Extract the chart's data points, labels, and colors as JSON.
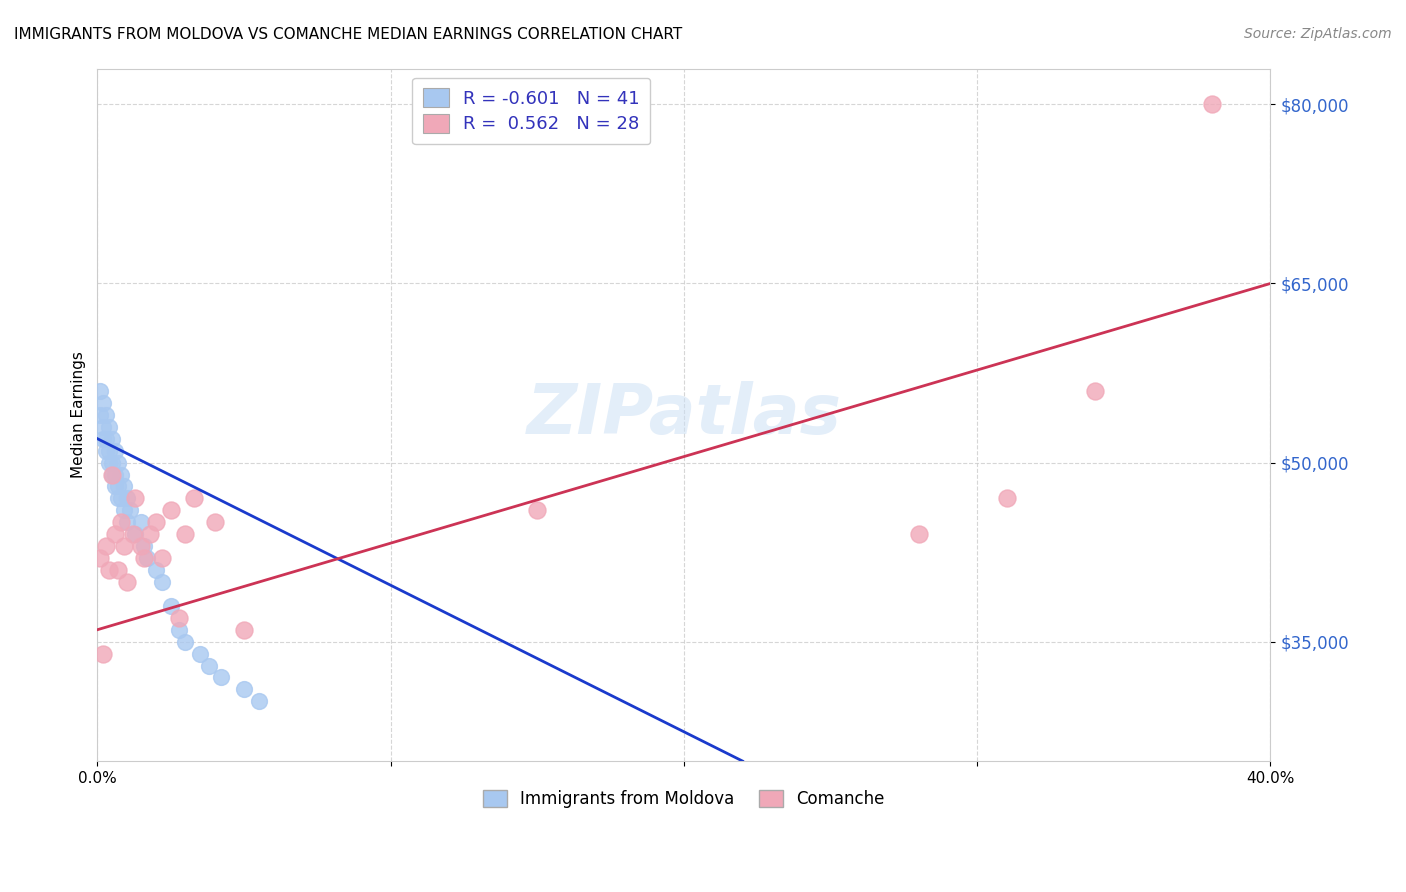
{
  "title": "IMMIGRANTS FROM MOLDOVA VS COMANCHE MEDIAN EARNINGS CORRELATION CHART",
  "source": "Source: ZipAtlas.com",
  "ylabel": "Median Earnings",
  "xlim": [
    0.0,
    0.4
  ],
  "ylim": [
    25000,
    83000
  ],
  "yticks": [
    35000,
    50000,
    65000,
    80000
  ],
  "ytick_labels": [
    "$35,000",
    "$50,000",
    "$65,000",
    "$80,000"
  ],
  "xticks": [
    0.0,
    0.1,
    0.2,
    0.3,
    0.4
  ],
  "xtick_labels": [
    "0.0%",
    "",
    "",
    "",
    "40.0%"
  ],
  "legend_labels": [
    "Immigrants from Moldova",
    "Comanche"
  ],
  "r_moldova": "-0.601",
  "n_moldova": "41",
  "r_comanche": "0.562",
  "n_comanche": "28",
  "blue_color": "#a8c8f0",
  "pink_color": "#f0a8b8",
  "blue_line_color": "#1a3acc",
  "pink_line_color": "#cc3355",
  "watermark": "ZIPatlas",
  "moldova_x": [
    0.001,
    0.001,
    0.002,
    0.002,
    0.002,
    0.003,
    0.003,
    0.003,
    0.004,
    0.004,
    0.004,
    0.005,
    0.005,
    0.005,
    0.006,
    0.006,
    0.006,
    0.007,
    0.007,
    0.007,
    0.008,
    0.008,
    0.009,
    0.009,
    0.01,
    0.01,
    0.011,
    0.013,
    0.015,
    0.016,
    0.017,
    0.02,
    0.022,
    0.025,
    0.028,
    0.03,
    0.035,
    0.038,
    0.042,
    0.05,
    0.055
  ],
  "moldova_y": [
    56000,
    54000,
    55000,
    53000,
    52000,
    54000,
    52000,
    51000,
    53000,
    51000,
    50000,
    52000,
    50000,
    49000,
    51000,
    49000,
    48000,
    50000,
    48000,
    47000,
    49000,
    47000,
    48000,
    46000,
    47000,
    45000,
    46000,
    44000,
    45000,
    43000,
    42000,
    41000,
    40000,
    38000,
    36000,
    35000,
    34000,
    33000,
    32000,
    31000,
    30000
  ],
  "comanche_x": [
    0.001,
    0.002,
    0.003,
    0.004,
    0.005,
    0.006,
    0.007,
    0.008,
    0.009,
    0.01,
    0.012,
    0.013,
    0.015,
    0.016,
    0.018,
    0.02,
    0.022,
    0.025,
    0.028,
    0.03,
    0.033,
    0.04,
    0.05,
    0.15,
    0.28,
    0.31,
    0.34,
    0.38
  ],
  "comanche_y": [
    42000,
    34000,
    43000,
    41000,
    49000,
    44000,
    41000,
    45000,
    43000,
    40000,
    44000,
    47000,
    43000,
    42000,
    44000,
    45000,
    42000,
    46000,
    37000,
    44000,
    47000,
    45000,
    36000,
    46000,
    44000,
    47000,
    56000,
    80000
  ],
  "blue_line_x": [
    0.0,
    0.22
  ],
  "blue_line_y": [
    52000,
    25000
  ],
  "pink_line_x": [
    0.0,
    0.4
  ],
  "pink_line_y": [
    36000,
    65000
  ]
}
